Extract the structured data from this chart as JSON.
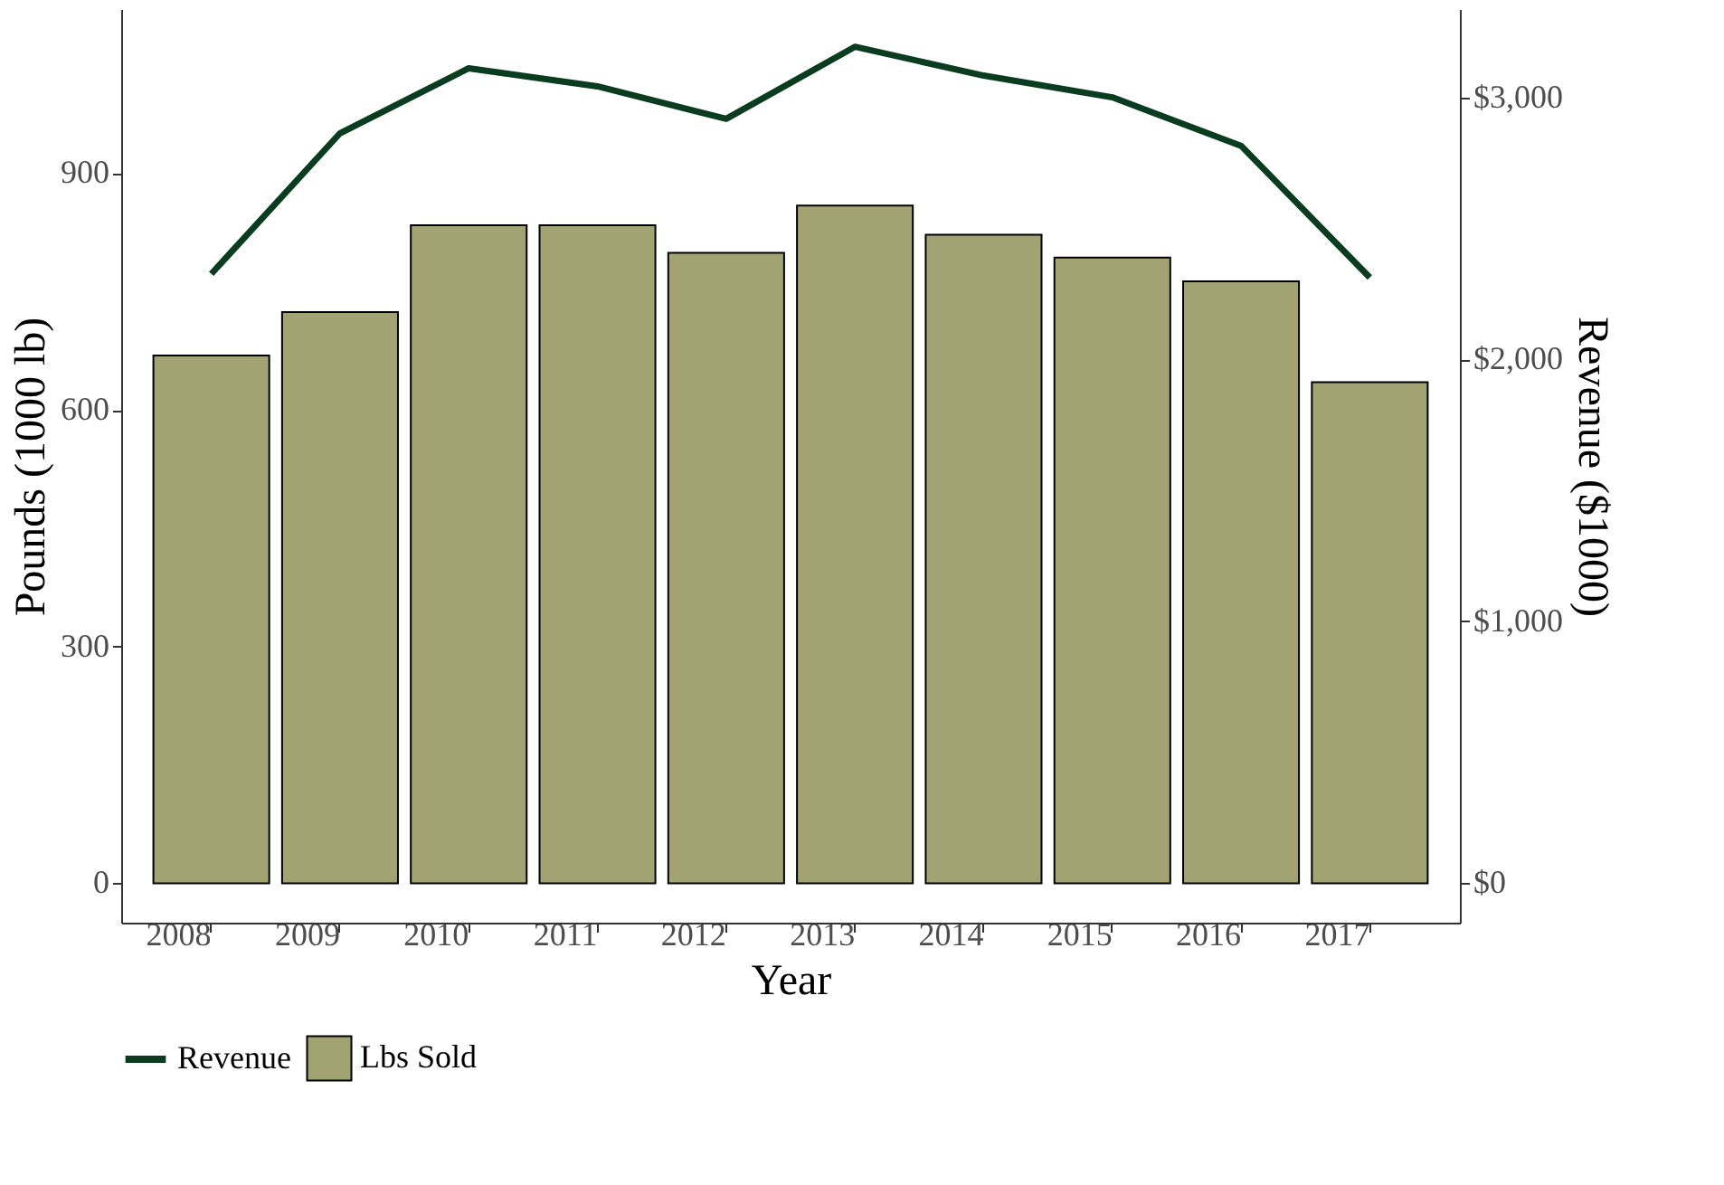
{
  "chart_data": {
    "type": "bar",
    "xlabel": "Year",
    "ylabel": "Pounds (1000 lb)",
    "y2label": "Revenue ($1000)",
    "categories": [
      "2008",
      "2009",
      "2010",
      "2011",
      "2012",
      "2013",
      "2014",
      "2015",
      "2016",
      "2017"
    ],
    "series": [
      {
        "name": "Lbs Sold",
        "type": "bar",
        "color": "#a2a373",
        "values": [
          669,
          724,
          834,
          834,
          799,
          859,
          822,
          793,
          763,
          635
        ]
      },
      {
        "name": "Revenue",
        "type": "line",
        "axis": "y2",
        "color": "#0a3d1f",
        "values": [
          2326,
          2863,
          3111,
          3042,
          2918,
          3193,
          3083,
          3000,
          2815,
          2312
        ]
      }
    ],
    "ylim": [
      -50,
      1108
    ],
    "yticks": [
      0,
      300,
      600,
      900
    ],
    "y2lim": [
      -151,
      3337
    ],
    "y2ticks": [
      {
        "value": 0,
        "label": "$0"
      },
      {
        "value": 1000,
        "label": "$1,000"
      },
      {
        "value": 2000,
        "label": "$2,000"
      },
      {
        "value": 3000,
        "label": "$3,000"
      }
    ],
    "grid": false,
    "legend": "bottom"
  }
}
